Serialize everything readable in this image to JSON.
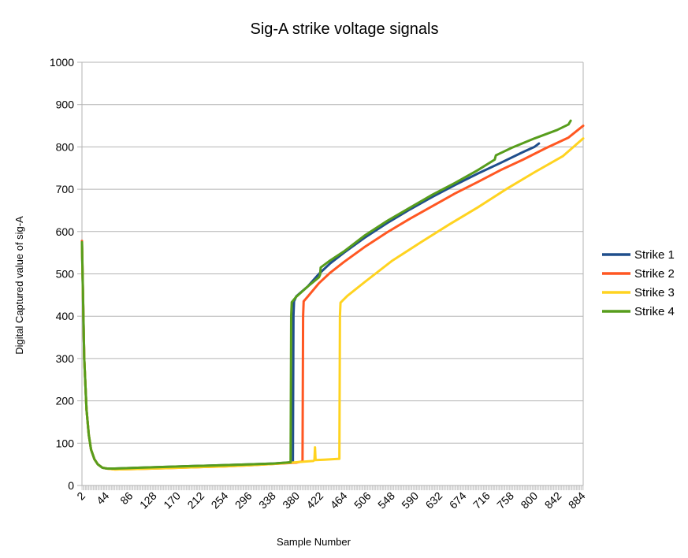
{
  "chart_data": {
    "type": "line",
    "title": "Sig-A strike voltage signals",
    "xlabel": "Sample Number",
    "ylabel": "Digital Captured value of sig-A",
    "xlim": [
      2,
      886
    ],
    "ylim": [
      0,
      1000
    ],
    "y_ticks": [
      "0",
      "100",
      "200",
      "300",
      "400",
      "500",
      "600",
      "700",
      "800",
      "900",
      "1000"
    ],
    "x_ticks": [
      "2",
      "44",
      "86",
      "128",
      "170",
      "212",
      "254",
      "296",
      "338",
      "380",
      "422",
      "464",
      "506",
      "548",
      "590",
      "632",
      "674",
      "716",
      "758",
      "800",
      "842",
      "884"
    ],
    "grid": "horizontal",
    "legend_position": "right",
    "series": [
      {
        "name": "Strike 1",
        "color": "#1f4e8c",
        "points": [
          [
            2,
            570
          ],
          [
            6,
            300
          ],
          [
            10,
            180
          ],
          [
            14,
            120
          ],
          [
            18,
            85
          ],
          [
            24,
            62
          ],
          [
            30,
            50
          ],
          [
            38,
            42
          ],
          [
            46,
            40
          ],
          [
            60,
            40
          ],
          [
            100,
            42
          ],
          [
            150,
            44
          ],
          [
            200,
            46
          ],
          [
            250,
            48
          ],
          [
            300,
            50
          ],
          [
            340,
            52
          ],
          [
            374,
            55
          ],
          [
            375,
            400
          ],
          [
            376,
            435
          ],
          [
            380,
            447
          ],
          [
            400,
            470
          ],
          [
            420,
            500
          ],
          [
            440,
            525
          ],
          [
            464,
            550
          ],
          [
            500,
            585
          ],
          [
            540,
            620
          ],
          [
            580,
            652
          ],
          [
            620,
            682
          ],
          [
            660,
            710
          ],
          [
            700,
            737
          ],
          [
            740,
            762
          ],
          [
            780,
            788
          ],
          [
            800,
            800
          ],
          [
            808,
            808
          ]
        ]
      },
      {
        "name": "Strike 2",
        "color": "#ff5722",
        "points": [
          [
            2,
            578
          ],
          [
            6,
            300
          ],
          [
            10,
            180
          ],
          [
            14,
            120
          ],
          [
            18,
            85
          ],
          [
            24,
            62
          ],
          [
            30,
            50
          ],
          [
            38,
            42
          ],
          [
            46,
            40
          ],
          [
            60,
            38
          ],
          [
            100,
            39
          ],
          [
            150,
            41
          ],
          [
            200,
            43
          ],
          [
            250,
            45
          ],
          [
            300,
            48
          ],
          [
            340,
            51
          ],
          [
            380,
            54
          ],
          [
            391,
            57
          ],
          [
            392,
            400
          ],
          [
            393,
            435
          ],
          [
            400,
            446
          ],
          [
            420,
            478
          ],
          [
            440,
            503
          ],
          [
            464,
            528
          ],
          [
            500,
            563
          ],
          [
            540,
            598
          ],
          [
            580,
            630
          ],
          [
            620,
            660
          ],
          [
            660,
            690
          ],
          [
            700,
            717
          ],
          [
            740,
            745
          ],
          [
            780,
            770
          ],
          [
            820,
            797
          ],
          [
            860,
            822
          ],
          [
            886,
            850
          ]
        ]
      },
      {
        "name": "Strike 3",
        "color": "#ffd320",
        "points": [
          [
            2,
            570
          ],
          [
            6,
            300
          ],
          [
            10,
            180
          ],
          [
            14,
            120
          ],
          [
            18,
            85
          ],
          [
            24,
            62
          ],
          [
            30,
            50
          ],
          [
            38,
            42
          ],
          [
            46,
            40
          ],
          [
            60,
            38
          ],
          [
            100,
            39
          ],
          [
            150,
            41
          ],
          [
            200,
            43
          ],
          [
            250,
            45
          ],
          [
            300,
            48
          ],
          [
            340,
            51
          ],
          [
            380,
            55
          ],
          [
            400,
            57
          ],
          [
            410,
            58
          ],
          [
            412,
            60
          ],
          [
            413,
            90
          ],
          [
            414,
            60
          ],
          [
            430,
            61
          ],
          [
            456,
            63
          ],
          [
            457,
            400
          ],
          [
            458,
            432
          ],
          [
            470,
            448
          ],
          [
            500,
            480
          ],
          [
            548,
            530
          ],
          [
            600,
            575
          ],
          [
            650,
            617
          ],
          [
            700,
            657
          ],
          [
            750,
            700
          ],
          [
            800,
            740
          ],
          [
            850,
            778
          ],
          [
            886,
            820
          ]
        ]
      },
      {
        "name": "Strike 4",
        "color": "#579d1c",
        "points": [
          [
            2,
            575
          ],
          [
            6,
            300
          ],
          [
            10,
            180
          ],
          [
            14,
            120
          ],
          [
            18,
            85
          ],
          [
            24,
            62
          ],
          [
            30,
            50
          ],
          [
            38,
            42
          ],
          [
            46,
            40
          ],
          [
            60,
            40
          ],
          [
            100,
            42
          ],
          [
            150,
            44
          ],
          [
            200,
            46
          ],
          [
            250,
            48
          ],
          [
            300,
            50
          ],
          [
            340,
            52
          ],
          [
            370,
            55
          ],
          [
            371,
            400
          ],
          [
            372,
            433
          ],
          [
            380,
            446
          ],
          [
            400,
            470
          ],
          [
            420,
            492
          ],
          [
            422,
            498
          ],
          [
            423,
            515
          ],
          [
            440,
            532
          ],
          [
            464,
            553
          ],
          [
            500,
            590
          ],
          [
            540,
            625
          ],
          [
            580,
            656
          ],
          [
            620,
            687
          ],
          [
            660,
            715
          ],
          [
            700,
            745
          ],
          [
            730,
            770
          ],
          [
            732,
            780
          ],
          [
            760,
            798
          ],
          [
            800,
            820
          ],
          [
            840,
            840
          ],
          [
            860,
            853
          ],
          [
            864,
            862
          ]
        ]
      }
    ]
  }
}
